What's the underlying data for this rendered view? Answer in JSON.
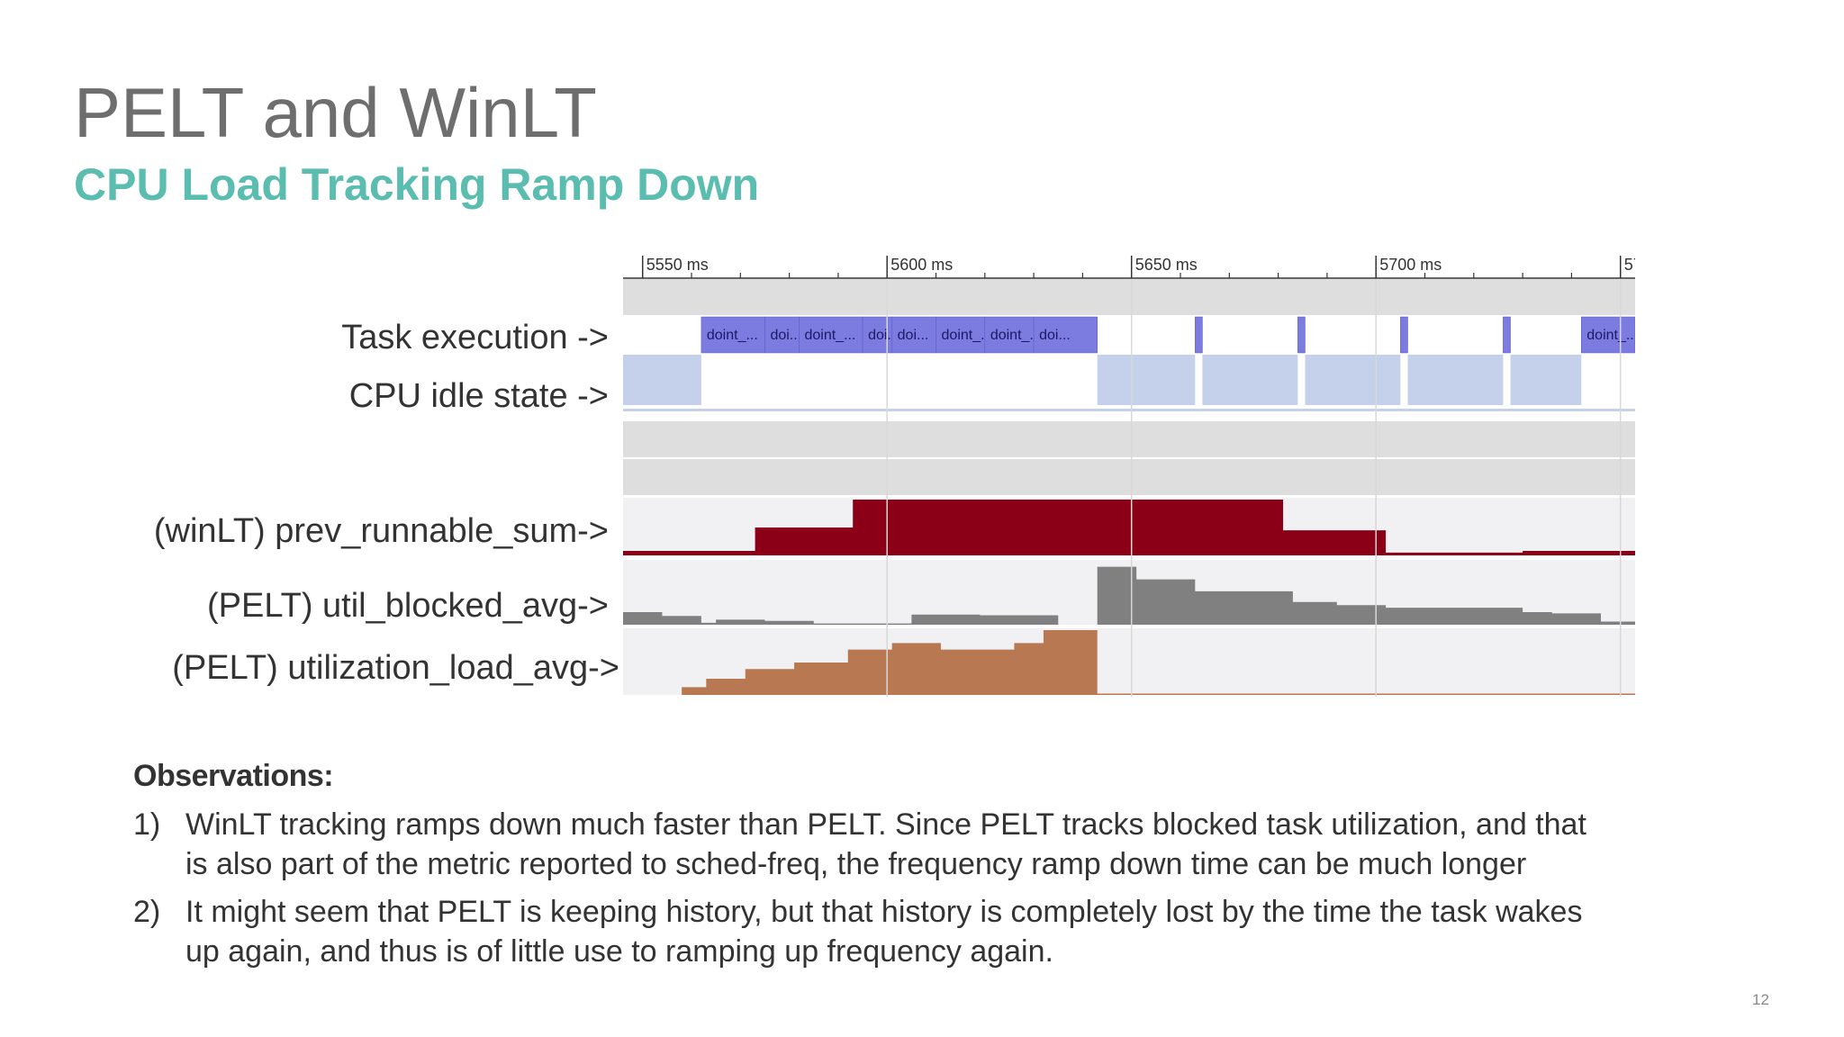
{
  "slide": {
    "title": "PELT and WinLT",
    "subtitle": "CPU Load Tracking Ramp Down",
    "page_number": "12"
  },
  "trace": {
    "time_ticks": [
      {
        "ms": 5550,
        "label": "5550 ms"
      },
      {
        "ms": 5600,
        "label": "5600 ms"
      },
      {
        "ms": 5650,
        "label": "5650 ms"
      },
      {
        "ms": 5700,
        "label": "5700 ms"
      },
      {
        "ms": 5750,
        "label": "57"
      }
    ],
    "row_labels": {
      "task_execution": "Task execution ->",
      "cpu_idle": "CPU idle state ->",
      "winlt": "(winLT) prev_runnable_sum->",
      "util_blocked": "(PELT) util_blocked_avg->",
      "util_load": "(PELT) utilization_load_avg->"
    },
    "task_slices": [
      {
        "start": 5562,
        "end": 5575,
        "label": "doint_..."
      },
      {
        "start": 5575,
        "end": 5582,
        "label": "doi..."
      },
      {
        "start": 5582,
        "end": 5595,
        "label": "doint_..."
      },
      {
        "start": 5595,
        "end": 5601,
        "label": "doi..."
      },
      {
        "start": 5601,
        "end": 5610,
        "label": "doi..."
      },
      {
        "start": 5610,
        "end": 5620,
        "label": "doint_..."
      },
      {
        "start": 5620,
        "end": 5630,
        "label": "doint_..."
      },
      {
        "start": 5630,
        "end": 5643,
        "label": "doi..."
      },
      {
        "start": 5663,
        "end": 5664.5,
        "label": ""
      },
      {
        "start": 5684,
        "end": 5685.5,
        "label": ""
      },
      {
        "start": 5705,
        "end": 5706.5,
        "label": ""
      },
      {
        "start": 5726,
        "end": 5727.5,
        "label": ""
      },
      {
        "start": 5742,
        "end": 5753,
        "label": "doint_..."
      }
    ],
    "colors": {
      "task": "#7b7be0",
      "idle": "#c5d0ea",
      "winlt": "#8b0016",
      "blocked": "#808080",
      "load": "#b87952",
      "band": "#dedede",
      "graph_bg": "#f1f0f2"
    }
  },
  "observations": {
    "heading": "Observations:",
    "items": [
      {
        "num": "1)",
        "text": "WinLT tracking ramps down much faster than PELT. Since PELT tracks blocked task utilization, and that is also part of the metric reported to sched-freq, the frequency ramp down time can be much longer"
      },
      {
        "num": "2)",
        "text": "It might seem that PELT is keeping history, but that history is completely lost by the time the task wakes up again, and thus is of little use to ramping up frequency again."
      }
    ]
  },
  "chart_data": [
    {
      "type": "area",
      "title": "(winLT) prev_runnable_sum",
      "x": [
        5546,
        5573,
        5593,
        5643,
        5681,
        5702,
        5730,
        5753
      ],
      "y": [
        0.08,
        0.5,
        1.0,
        1.0,
        0.45,
        0.05,
        0.08,
        0.08
      ],
      "step": true,
      "xlim": [
        5546,
        5753
      ]
    },
    {
      "type": "area",
      "title": "(PELT) util_blocked_avg",
      "x": [
        5546,
        5554,
        5562,
        5565,
        5575,
        5585,
        5605,
        5619,
        5635,
        5643,
        5651,
        5663,
        5683,
        5692,
        5702,
        5710,
        5730,
        5736,
        5746,
        5753
      ],
      "y": [
        0.2,
        0.14,
        0.03,
        0.08,
        0.06,
        0.02,
        0.16,
        0.15,
        0.0,
        0.92,
        0.72,
        0.53,
        0.36,
        0.31,
        0.27,
        0.27,
        0.2,
        0.18,
        0.05,
        0.03
      ],
      "step": true,
      "xlim": [
        5546,
        5753
      ]
    },
    {
      "type": "area",
      "title": "(PELT) utilization_load_avg",
      "x": [
        5546,
        5558,
        5563,
        5571,
        5581,
        5592,
        5601,
        5611,
        5626,
        5632,
        5643,
        5753
      ],
      "y": [
        0.0,
        0.12,
        0.25,
        0.4,
        0.5,
        0.7,
        0.8,
        0.7,
        0.8,
        1.0,
        0.02,
        0.02
      ],
      "step": true,
      "xlim": [
        5546,
        5753
      ]
    }
  ]
}
